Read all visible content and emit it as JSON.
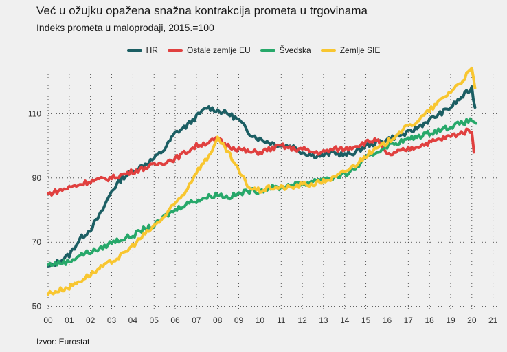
{
  "title": "Već u ožujku opažena snažna kontrakcija prometa u trgovinama",
  "subtitle": "Indeks prometa u maloprodaji, 2015.=100",
  "source": "Izvor: Eurostat",
  "chart_data": {
    "type": "line",
    "x_ticks": [
      "00",
      "01",
      "02",
      "03",
      "04",
      "05",
      "06",
      "07",
      "08",
      "09",
      "10",
      "11",
      "12",
      "13",
      "14",
      "15",
      "16",
      "17",
      "18",
      "19",
      "20",
      "21"
    ],
    "xlim": [
      2000,
      2021.4
    ],
    "ylim": [
      48,
      124
    ],
    "y_ticks": [
      50,
      70,
      90,
      110
    ],
    "grid": true,
    "legend_position": "top",
    "series": [
      {
        "name": "HR",
        "color": "#1b5e63",
        "points": [
          [
            2000,
            62
          ],
          [
            2000.5,
            64
          ],
          [
            2001,
            66
          ],
          [
            2001.5,
            71
          ],
          [
            2002,
            74
          ],
          [
            2002.5,
            79
          ],
          [
            2003,
            86
          ],
          [
            2003.5,
            90
          ],
          [
            2004,
            92
          ],
          [
            2004.5,
            94
          ],
          [
            2005,
            96
          ],
          [
            2005.5,
            99
          ],
          [
            2006,
            104
          ],
          [
            2006.5,
            106
          ],
          [
            2007,
            109
          ],
          [
            2007.5,
            112
          ],
          [
            2008,
            111
          ],
          [
            2008.5,
            110
          ],
          [
            2009,
            108
          ],
          [
            2009.5,
            104
          ],
          [
            2010,
            102
          ],
          [
            2010.5,
            101
          ],
          [
            2011,
            100
          ],
          [
            2011.5,
            100
          ],
          [
            2012,
            98
          ],
          [
            2012.5,
            97
          ],
          [
            2013,
            97
          ],
          [
            2013.5,
            98
          ],
          [
            2014,
            97
          ],
          [
            2014.5,
            98
          ],
          [
            2015,
            100
          ],
          [
            2015.5,
            101
          ],
          [
            2016,
            102
          ],
          [
            2016.5,
            103
          ],
          [
            2017,
            104
          ],
          [
            2017.5,
            106
          ],
          [
            2018,
            108
          ],
          [
            2018.5,
            110
          ],
          [
            2019,
            112
          ],
          [
            2019.5,
            115
          ],
          [
            2020,
            118
          ],
          [
            2020.15,
            112
          ]
        ]
      },
      {
        "name": "Ostale zemlje EU",
        "color": "#e0403f",
        "points": [
          [
            2000,
            85
          ],
          [
            2000.5,
            86
          ],
          [
            2001,
            87
          ],
          [
            2001.5,
            88
          ],
          [
            2002,
            89
          ],
          [
            2002.5,
            89.5
          ],
          [
            2003,
            90
          ],
          [
            2003.5,
            91
          ],
          [
            2004,
            92
          ],
          [
            2004.5,
            93
          ],
          [
            2005,
            94
          ],
          [
            2005.5,
            95
          ],
          [
            2006,
            96
          ],
          [
            2006.5,
            98
          ],
          [
            2007,
            100
          ],
          [
            2007.5,
            101
          ],
          [
            2008,
            102
          ],
          [
            2008.5,
            100
          ],
          [
            2009,
            99
          ],
          [
            2009.5,
            98
          ],
          [
            2010,
            98
          ],
          [
            2010.5,
            99
          ],
          [
            2011,
            100
          ],
          [
            2011.5,
            99
          ],
          [
            2012,
            99
          ],
          [
            2012.5,
            98
          ],
          [
            2013,
            98
          ],
          [
            2013.5,
            99
          ],
          [
            2014,
            99
          ],
          [
            2014.5,
            100
          ],
          [
            2015,
            101
          ],
          [
            2015.5,
            102
          ],
          [
            2016,
            97
          ],
          [
            2016.5,
            98
          ],
          [
            2017,
            99
          ],
          [
            2017.5,
            100
          ],
          [
            2018,
            101
          ],
          [
            2018.5,
            102
          ],
          [
            2019,
            103
          ],
          [
            2019.5,
            104
          ],
          [
            2020,
            105
          ],
          [
            2020.1,
            98
          ]
        ]
      },
      {
        "name": "Švedska",
        "color": "#27a86a",
        "points": [
          [
            2000,
            63
          ],
          [
            2000.5,
            63.5
          ],
          [
            2001,
            64
          ],
          [
            2001.5,
            66
          ],
          [
            2002,
            67
          ],
          [
            2002.5,
            68
          ],
          [
            2003,
            70
          ],
          [
            2003.5,
            71
          ],
          [
            2004,
            72
          ],
          [
            2004.5,
            74
          ],
          [
            2005,
            75
          ],
          [
            2005.5,
            78
          ],
          [
            2006,
            80
          ],
          [
            2006.5,
            82
          ],
          [
            2007,
            83
          ],
          [
            2007.5,
            84
          ],
          [
            2008,
            85
          ],
          [
            2008.5,
            84
          ],
          [
            2009,
            85
          ],
          [
            2009.5,
            86
          ],
          [
            2010,
            86
          ],
          [
            2010.5,
            87
          ],
          [
            2011,
            87
          ],
          [
            2011.5,
            88
          ],
          [
            2012,
            88
          ],
          [
            2012.5,
            89
          ],
          [
            2013,
            90
          ],
          [
            2013.5,
            90
          ],
          [
            2014,
            91
          ],
          [
            2014.5,
            93
          ],
          [
            2015,
            96
          ],
          [
            2015.5,
            98
          ],
          [
            2016,
            100
          ],
          [
            2016.5,
            101
          ],
          [
            2017,
            102
          ],
          [
            2017.5,
            103
          ],
          [
            2018,
            104
          ],
          [
            2018.5,
            105
          ],
          [
            2019,
            106
          ],
          [
            2019.5,
            107
          ],
          [
            2020,
            108
          ],
          [
            2020.2,
            107
          ]
        ]
      },
      {
        "name": "Zemlje SIE",
        "color": "#f8c630",
        "points": [
          [
            2000,
            54
          ],
          [
            2000.5,
            55
          ],
          [
            2001,
            56
          ],
          [
            2001.5,
            58
          ],
          [
            2002,
            60
          ],
          [
            2002.5,
            62
          ],
          [
            2003,
            64
          ],
          [
            2003.5,
            66
          ],
          [
            2004,
            69
          ],
          [
            2004.5,
            72
          ],
          [
            2005,
            75
          ],
          [
            2005.5,
            78
          ],
          [
            2006,
            82
          ],
          [
            2006.5,
            86
          ],
          [
            2007,
            92
          ],
          [
            2007.5,
            96
          ],
          [
            2008,
            102
          ],
          [
            2008.5,
            98
          ],
          [
            2009,
            92
          ],
          [
            2009.5,
            87
          ],
          [
            2010,
            86
          ],
          [
            2010.5,
            87
          ],
          [
            2011,
            87
          ],
          [
            2011.5,
            87
          ],
          [
            2012,
            88
          ],
          [
            2012.5,
            88
          ],
          [
            2013,
            89
          ],
          [
            2013.5,
            90
          ],
          [
            2014,
            92
          ],
          [
            2014.5,
            94
          ],
          [
            2015,
            97
          ],
          [
            2015.5,
            99
          ],
          [
            2016,
            101
          ],
          [
            2016.5,
            104
          ],
          [
            2017,
            106
          ],
          [
            2017.5,
            108
          ],
          [
            2018,
            111
          ],
          [
            2018.5,
            114
          ],
          [
            2019,
            117
          ],
          [
            2019.5,
            120
          ],
          [
            2020,
            124
          ],
          [
            2020.15,
            118
          ]
        ]
      }
    ]
  }
}
